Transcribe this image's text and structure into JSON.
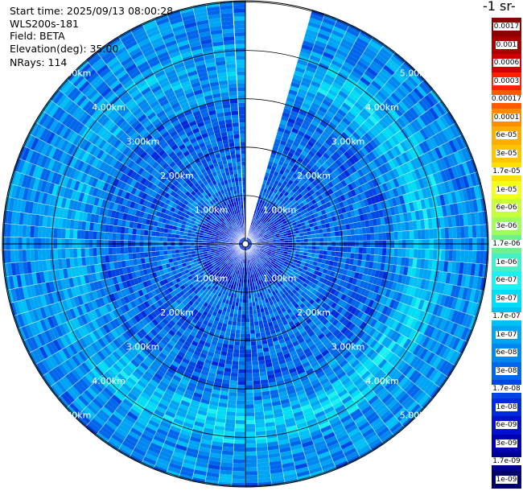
{
  "header": {
    "start_time": "Start time: 2025/09/13 08:00:28",
    "instrument": "WLS200s-181",
    "field": "Field: BETA",
    "elevation": "Elevation(deg): 35.00",
    "nrays": "NRays: 114"
  },
  "colorbar": {
    "title": "-1 sr-",
    "labels": [
      "0.0017",
      "0.001",
      "0.0006",
      "0.0003",
      "0.00017",
      "0.0001",
      "6e-05",
      "3e-05",
      "1.7e-05",
      "1e-05",
      "6e-06",
      "3e-06",
      "1.7e-06",
      "1e-06",
      "6e-07",
      "3e-07",
      "1.7e-07",
      "1e-07",
      "6e-08",
      "3e-08",
      "1.7e-08",
      "1e-08",
      "6e-09",
      "3e-09",
      "1.7e-09",
      "1e-09"
    ],
    "colors": [
      "#8b0000",
      "#a80000",
      "#cf0000",
      "#ff2000",
      "#ff5a00",
      "#ff8c00",
      "#ffae00",
      "#ffc400",
      "#ffe100",
      "#f2ff1a",
      "#c6ff3a",
      "#9cff5e",
      "#6ff08e",
      "#43f0c8",
      "#1cf0f0",
      "#00dcf5",
      "#00c0f5",
      "#00a4f5",
      "#0088f0",
      "#0066ec",
      "#0046e4",
      "#0028dc",
      "#0010cc",
      "#0000b0",
      "#000090",
      "#00006a"
    ]
  },
  "chart_data": {
    "type": "heatmap",
    "projection": "polar PPI scan",
    "range_rings_km": [
      1,
      2,
      3,
      4,
      5
    ],
    "ring_labels": [
      "1.00km",
      "2.00km",
      "3.00km",
      "4.00km",
      "5.00km"
    ],
    "max_range_km": 5.0,
    "gap_sector_deg": [
      0,
      15
    ],
    "color_scale": "log",
    "value_min": 1e-09,
    "value_max": 0.0017,
    "typical_values": {
      "near_range_0_1km": 1e-08,
      "mid_range_1_3km": 3e-08,
      "aerosol_band_3.4_4.1km_east_south": 1.7e-07,
      "outer_range_4_5km": 6e-08
    }
  }
}
